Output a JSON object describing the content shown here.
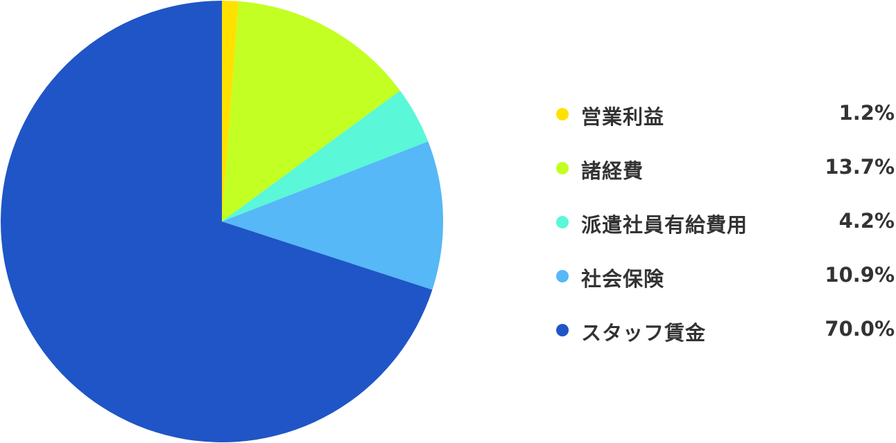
{
  "chart_data": {
    "type": "pie",
    "start": "top",
    "direction": "clockwise",
    "slices": [
      {
        "label": "営業利益",
        "value": 1.2,
        "display": "1.2%",
        "color": "#ffe100"
      },
      {
        "label": "諸経費",
        "value": 13.7,
        "display": "13.7%",
        "color": "#c3ff22"
      },
      {
        "label": "派遣社員有給費用",
        "value": 4.2,
        "display": "4.2%",
        "color": "#5af7d8"
      },
      {
        "label": "社会保険",
        "value": 10.9,
        "display": "10.9%",
        "color": "#56b8f6"
      },
      {
        "label": "スタッフ賃金",
        "value": 70.0,
        "display": "70.0%",
        "color": "#1f55c6"
      }
    ],
    "legend": "right"
  }
}
